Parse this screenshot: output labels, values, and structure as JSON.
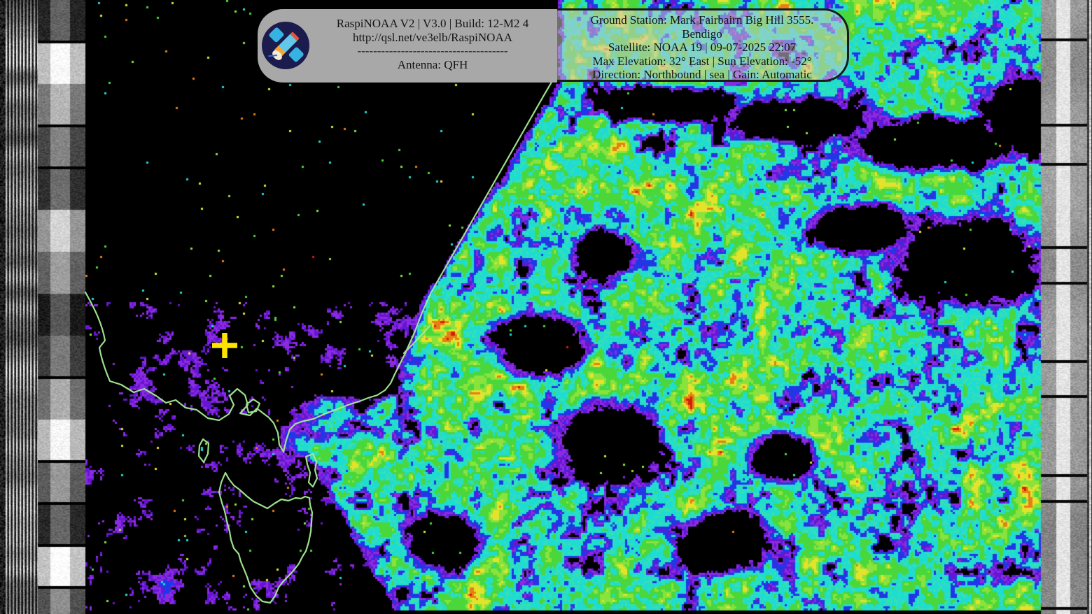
{
  "overlay": {
    "app_info": {
      "line1": "RaspiNOAA V2 | V3.0 | Build: 12-M2 4",
      "line2": "http://qsl.net/ve3elb/RaspiNOAA",
      "line3": "--------------------------------------",
      "line4": "Antenna: QFH"
    },
    "pass_info": {
      "line1": "Ground Station: Mark Fairbairn Big Hill 3555.",
      "line2": "Bendigo",
      "line3": "Satellite: NOAA 19 | 09-07-2025 22:07",
      "line4": "Max Elevation: 32° East | Sun Elevation: -52°",
      "line5": "Direction: Northbound | sea | Gain: Automatic"
    },
    "logo_icon": "raspinoaa-satellite-logo",
    "box_background": "#a8a8a8"
  },
  "map_overlay": {
    "marker_icon": "ground-station-cross-marker",
    "marker_color": "#ffe400",
    "coastline_color": "#a6eb96"
  },
  "palette": {
    "black": "#000000",
    "purple": "#6616d2",
    "purple2": "#8a2be2",
    "blue": "#2236e6",
    "cyan": "#1fdcd2",
    "teal": "#35e0b0",
    "green": "#49d73b",
    "green2": "#8ae23c",
    "yellow": "#e3e32c",
    "orange": "#e67e16",
    "red": "#cf1f08"
  }
}
